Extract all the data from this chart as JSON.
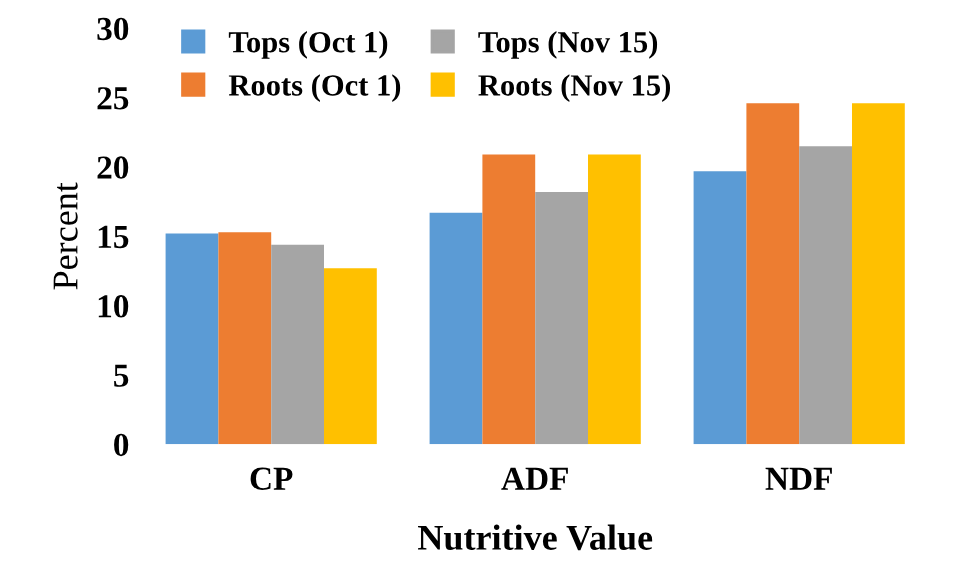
{
  "chart_data": {
    "type": "bar",
    "xlabel": "Nutritive Value",
    "ylabel": "Percent",
    "categories": [
      "CP",
      "ADF",
      "NDF"
    ],
    "series": [
      {
        "name": "Tops (Oct 1)",
        "color": "#5b9bd5",
        "values": [
          15.2,
          16.7,
          19.7
        ]
      },
      {
        "name": "Roots (Oct 1)",
        "color": "#ed7d31",
        "values": [
          15.3,
          20.9,
          24.6
        ]
      },
      {
        "name": "Tops (Nov 15)",
        "color": "#a5a5a5",
        "values": [
          14.4,
          18.2,
          21.5
        ]
      },
      {
        "name": "Roots (Nov 15)",
        "color": "#ffc000",
        "values": [
          12.7,
          20.9,
          24.6
        ]
      }
    ],
    "ylim": [
      0,
      30
    ],
    "yticks": [
      0,
      5,
      10,
      15,
      20,
      25,
      30
    ],
    "grid": false,
    "legend": "top left"
  }
}
